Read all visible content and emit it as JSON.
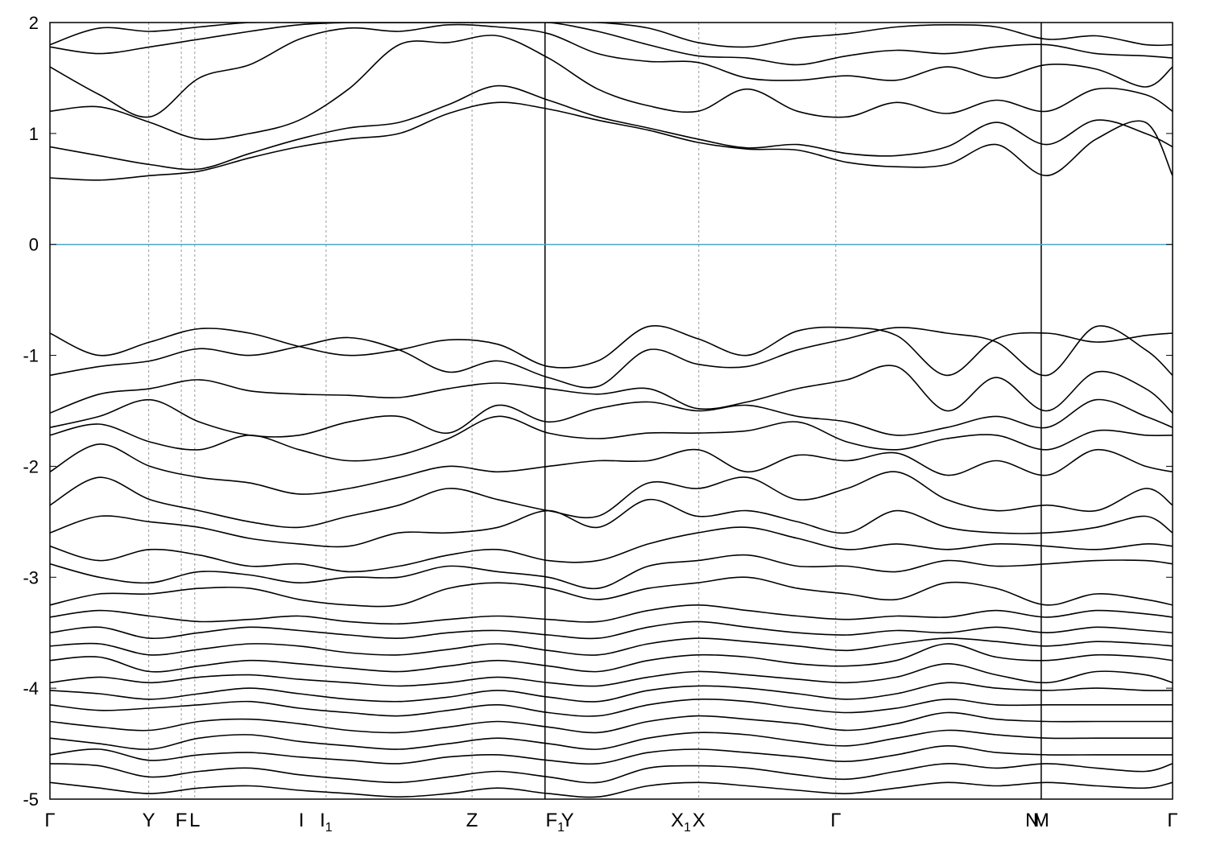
{
  "chart_data": {
    "type": "line",
    "title": "",
    "xlabel": "",
    "ylabel": "",
    "ylim": [
      -5,
      2
    ],
    "yticks": [
      2,
      1,
      0,
      -1,
      -2,
      -3,
      -4,
      -5
    ],
    "ytick_labels": [
      "2",
      "1",
      "0",
      "-1",
      "-2",
      "-3",
      "-4",
      "-5"
    ],
    "grid": false,
    "fermi_level": 0,
    "fermi_color": "#4aa8c8",
    "band_color": "#000000",
    "x": [
      0,
      0.044,
      0.089,
      0.133,
      0.178,
      0.222,
      0.266,
      0.311,
      0.355,
      0.399,
      0.444,
      0.488,
      0.533,
      0.577,
      0.621,
      0.666,
      0.71,
      0.754,
      0.799,
      0.843,
      0.888,
      0.932,
      0.976,
      1.0
    ],
    "high_symmetry_points": [
      {
        "label": "Γ",
        "sub": "",
        "x": 0.0
      },
      {
        "label": "Y",
        "sub": "",
        "x": 0.088
      },
      {
        "label": "F",
        "sub": "",
        "x": 0.117
      },
      {
        "label": "L",
        "sub": "",
        "x": 0.129
      },
      {
        "label": "I",
        "sub": "",
        "x": 0.224
      },
      {
        "label": "I",
        "sub": "1",
        "x": 0.246
      },
      {
        "label": "Z",
        "sub": "",
        "x": 0.376
      },
      {
        "label": "F",
        "sub": "1",
        "x": 0.45
      },
      {
        "label": "Y",
        "sub": "",
        "x": 0.461
      },
      {
        "label": "X",
        "sub": "1",
        "x": 0.562
      },
      {
        "label": "X",
        "sub": "",
        "x": 0.578
      },
      {
        "label": "Γ",
        "sub": "",
        "x": 0.7
      },
      {
        "label": "N",
        "sub": "",
        "x": 0.875
      },
      {
        "label": "M",
        "sub": "",
        "x": 0.883
      },
      {
        "label": "Γ",
        "sub": "",
        "x": 1.0
      }
    ],
    "vertical_lines": [
      0.088,
      0.117,
      0.129,
      0.246,
      0.376,
      0.578,
      0.7
    ],
    "path_breaks": [
      0.441,
      0.883
    ],
    "series": [
      {
        "values": [
          0.6,
          0.58,
          0.62,
          0.66,
          0.78,
          0.88,
          0.95,
          1.0,
          1.18,
          1.28,
          1.22,
          1.12,
          1.03,
          0.92,
          0.86,
          0.85,
          0.74,
          0.7,
          0.72,
          0.9,
          0.62,
          0.95,
          1.1,
          0.62
        ]
      },
      {
        "values": [
          0.88,
          0.8,
          0.72,
          0.68,
          0.82,
          0.95,
          1.05,
          1.1,
          1.26,
          1.43,
          1.3,
          1.15,
          1.05,
          0.95,
          0.87,
          0.9,
          0.82,
          0.8,
          0.88,
          1.1,
          0.9,
          1.12,
          1.0,
          0.88
        ]
      },
      {
        "values": [
          1.2,
          1.24,
          1.1,
          0.95,
          1.0,
          1.12,
          1.4,
          1.8,
          1.82,
          1.88,
          1.68,
          1.4,
          1.25,
          1.2,
          1.4,
          1.2,
          1.15,
          1.28,
          1.18,
          1.3,
          1.2,
          1.4,
          1.35,
          1.2
        ]
      },
      {
        "values": [
          1.6,
          1.35,
          1.15,
          1.5,
          1.62,
          1.85,
          1.95,
          1.92,
          1.98,
          1.96,
          1.9,
          1.72,
          1.65,
          1.64,
          1.5,
          1.48,
          1.52,
          1.48,
          1.6,
          1.5,
          1.62,
          1.58,
          1.42,
          1.6
        ]
      },
      {
        "values": [
          1.78,
          1.72,
          1.78,
          1.85,
          1.92,
          1.98,
          2.0,
          2.0,
          2.0,
          2.0,
          2.0,
          1.92,
          1.8,
          1.7,
          1.68,
          1.62,
          1.7,
          1.75,
          1.72,
          1.78,
          1.8,
          1.72,
          1.7,
          1.68
        ]
      },
      {
        "values": [
          1.8,
          1.95,
          1.92,
          1.96,
          2.0,
          2.0,
          2.0,
          2.0,
          2.0,
          2.0,
          2.0,
          2.0,
          1.95,
          1.82,
          1.78,
          1.86,
          1.9,
          1.96,
          1.98,
          1.96,
          1.85,
          1.88,
          1.8,
          1.8
        ]
      },
      {
        "values": [
          -0.8,
          -1.0,
          -0.88,
          -0.76,
          -0.8,
          -0.92,
          -1.0,
          -0.95,
          -0.86,
          -0.9,
          -1.1,
          -1.05,
          -0.74,
          -0.85,
          -1.0,
          -0.78,
          -0.75,
          -0.82,
          -1.18,
          -0.85,
          -0.8,
          -0.88,
          -0.82,
          -0.8
        ]
      },
      {
        "values": [
          -1.18,
          -1.1,
          -1.05,
          -0.94,
          -1.0,
          -0.92,
          -0.84,
          -0.95,
          -1.15,
          -1.05,
          -1.2,
          -1.28,
          -0.95,
          -1.08,
          -1.1,
          -0.95,
          -0.85,
          -0.75,
          -0.8,
          -0.88,
          -1.18,
          -0.74,
          -0.95,
          -1.18
        ]
      },
      {
        "values": [
          -1.52,
          -1.35,
          -1.3,
          -1.22,
          -1.32,
          -1.35,
          -1.36,
          -1.38,
          -1.3,
          -1.25,
          -1.3,
          -1.35,
          -1.3,
          -1.48,
          -1.42,
          -1.3,
          -1.22,
          -1.1,
          -1.5,
          -1.2,
          -1.5,
          -1.15,
          -1.3,
          -1.52
        ]
      },
      {
        "values": [
          -1.65,
          -1.55,
          -1.4,
          -1.6,
          -1.72,
          -1.72,
          -1.6,
          -1.55,
          -1.7,
          -1.45,
          -1.6,
          -1.48,
          -1.42,
          -1.5,
          -1.45,
          -1.55,
          -1.6,
          -1.72,
          -1.65,
          -1.55,
          -1.65,
          -1.4,
          -1.55,
          -1.65
        ]
      },
      {
        "values": [
          -1.72,
          -1.62,
          -1.78,
          -1.85,
          -1.72,
          -1.85,
          -1.95,
          -1.9,
          -1.75,
          -1.55,
          -1.7,
          -1.75,
          -1.7,
          -1.7,
          -1.68,
          -1.6,
          -1.78,
          -1.85,
          -1.75,
          -1.72,
          -1.85,
          -1.68,
          -1.72,
          -1.72
        ]
      },
      {
        "values": [
          -2.05,
          -1.8,
          -2.0,
          -2.1,
          -2.15,
          -2.25,
          -2.2,
          -2.1,
          -2.0,
          -2.05,
          -2.0,
          -1.95,
          -1.95,
          -1.85,
          -2.05,
          -1.9,
          -1.95,
          -1.88,
          -2.08,
          -1.95,
          -2.08,
          -1.85,
          -2.0,
          -2.05
        ]
      },
      {
        "values": [
          -2.35,
          -2.1,
          -2.3,
          -2.4,
          -2.5,
          -2.55,
          -2.45,
          -2.35,
          -2.2,
          -2.3,
          -2.4,
          -2.45,
          -2.15,
          -2.2,
          -2.1,
          -2.3,
          -2.2,
          -2.05,
          -2.3,
          -2.4,
          -2.35,
          -2.4,
          -2.2,
          -2.35
        ]
      },
      {
        "values": [
          -2.6,
          -2.45,
          -2.5,
          -2.55,
          -2.65,
          -2.7,
          -2.72,
          -2.6,
          -2.6,
          -2.55,
          -2.4,
          -2.55,
          -2.3,
          -2.45,
          -2.4,
          -2.5,
          -2.6,
          -2.4,
          -2.55,
          -2.6,
          -2.6,
          -2.55,
          -2.45,
          -2.6
        ]
      },
      {
        "values": [
          -2.72,
          -2.85,
          -2.75,
          -2.8,
          -2.9,
          -2.88,
          -2.95,
          -2.9,
          -2.8,
          -2.75,
          -2.85,
          -2.85,
          -2.7,
          -2.6,
          -2.55,
          -2.65,
          -2.75,
          -2.7,
          -2.75,
          -2.7,
          -2.72,
          -2.75,
          -2.7,
          -2.72
        ]
      },
      {
        "values": [
          -2.88,
          -3.0,
          -3.05,
          -2.95,
          -2.98,
          -3.05,
          -3.0,
          -3.0,
          -2.9,
          -2.95,
          -3.0,
          -3.1,
          -2.9,
          -2.85,
          -2.8,
          -2.9,
          -2.9,
          -2.95,
          -2.85,
          -2.9,
          -2.88,
          -2.85,
          -2.85,
          -2.88
        ]
      },
      {
        "values": [
          -3.25,
          -3.15,
          -3.15,
          -3.1,
          -3.1,
          -3.2,
          -3.25,
          -3.25,
          -3.1,
          -3.05,
          -3.1,
          -3.2,
          -3.1,
          -3.05,
          -3.0,
          -3.1,
          -3.15,
          -3.2,
          -3.05,
          -3.1,
          -3.25,
          -3.15,
          -3.2,
          -3.25
        ]
      },
      {
        "values": [
          -3.36,
          -3.3,
          -3.35,
          -3.4,
          -3.38,
          -3.35,
          -3.4,
          -3.42,
          -3.38,
          -3.35,
          -3.38,
          -3.4,
          -3.3,
          -3.25,
          -3.3,
          -3.35,
          -3.38,
          -3.35,
          -3.36,
          -3.3,
          -3.36,
          -3.3,
          -3.33,
          -3.36
        ]
      },
      {
        "values": [
          -3.5,
          -3.45,
          -3.55,
          -3.5,
          -3.45,
          -3.48,
          -3.52,
          -3.55,
          -3.5,
          -3.48,
          -3.52,
          -3.55,
          -3.45,
          -3.4,
          -3.45,
          -3.5,
          -3.52,
          -3.48,
          -3.5,
          -3.45,
          -3.5,
          -3.45,
          -3.48,
          -3.5
        ]
      },
      {
        "values": [
          -3.62,
          -3.6,
          -3.7,
          -3.65,
          -3.6,
          -3.62,
          -3.68,
          -3.7,
          -3.65,
          -3.6,
          -3.66,
          -3.7,
          -3.6,
          -3.55,
          -3.58,
          -3.62,
          -3.66,
          -3.6,
          -3.55,
          -3.58,
          -3.62,
          -3.58,
          -3.6,
          -3.62
        ]
      },
      {
        "values": [
          -3.75,
          -3.72,
          -3.85,
          -3.8,
          -3.75,
          -3.78,
          -3.82,
          -3.85,
          -3.8,
          -3.75,
          -3.8,
          -3.85,
          -3.75,
          -3.7,
          -3.72,
          -3.78,
          -3.8,
          -3.75,
          -3.6,
          -3.72,
          -3.75,
          -3.7,
          -3.72,
          -3.75
        ]
      },
      {
        "values": [
          -3.95,
          -3.9,
          -3.95,
          -3.9,
          -3.88,
          -3.92,
          -3.95,
          -3.98,
          -3.95,
          -3.9,
          -3.95,
          -3.98,
          -3.9,
          -3.85,
          -3.88,
          -3.92,
          -3.95,
          -3.9,
          -3.78,
          -3.88,
          -3.95,
          -3.85,
          -3.88,
          -3.95
        ]
      },
      {
        "values": [
          -4.02,
          -4.05,
          -4.1,
          -4.05,
          -4.0,
          -4.05,
          -4.1,
          -4.12,
          -4.08,
          -4.02,
          -4.08,
          -4.12,
          -4.02,
          -3.98,
          -4.0,
          -4.05,
          -4.1,
          -4.05,
          -3.95,
          -4.0,
          -4.02,
          -4.0,
          -4.02,
          -4.02
        ]
      },
      {
        "values": [
          -4.15,
          -4.2,
          -4.18,
          -4.15,
          -4.12,
          -4.18,
          -4.22,
          -4.25,
          -4.2,
          -4.15,
          -4.22,
          -4.25,
          -4.15,
          -4.1,
          -4.12,
          -4.18,
          -4.22,
          -4.18,
          -4.1,
          -4.15,
          -4.15,
          -4.15,
          -4.15,
          -4.15
        ]
      },
      {
        "values": [
          -4.3,
          -4.35,
          -4.38,
          -4.3,
          -4.28,
          -4.32,
          -4.38,
          -4.4,
          -4.35,
          -4.3,
          -4.35,
          -4.4,
          -4.3,
          -4.25,
          -4.28,
          -4.32,
          -4.38,
          -4.32,
          -4.22,
          -4.28,
          -4.3,
          -4.3,
          -4.3,
          -4.3
        ]
      },
      {
        "values": [
          -4.45,
          -4.5,
          -4.55,
          -4.45,
          -4.42,
          -4.48,
          -4.52,
          -4.55,
          -4.5,
          -4.45,
          -4.5,
          -4.55,
          -4.45,
          -4.4,
          -4.42,
          -4.48,
          -4.52,
          -4.45,
          -4.38,
          -4.42,
          -4.45,
          -4.45,
          -4.45,
          -4.45
        ]
      },
      {
        "values": [
          -4.6,
          -4.55,
          -4.65,
          -4.6,
          -4.58,
          -4.62,
          -4.65,
          -4.68,
          -4.62,
          -4.6,
          -4.65,
          -4.68,
          -4.58,
          -4.55,
          -4.58,
          -4.62,
          -4.66,
          -4.6,
          -4.52,
          -4.58,
          -4.6,
          -4.6,
          -4.6,
          -4.6
        ]
      },
      {
        "values": [
          -4.68,
          -4.7,
          -4.8,
          -4.75,
          -4.72,
          -4.78,
          -4.82,
          -4.85,
          -4.8,
          -4.75,
          -4.8,
          -4.85,
          -4.72,
          -4.7,
          -4.72,
          -4.78,
          -4.82,
          -4.75,
          -4.68,
          -4.72,
          -4.68,
          -4.72,
          -4.75,
          -4.68
        ]
      },
      {
        "values": [
          -4.85,
          -4.9,
          -4.95,
          -4.9,
          -4.88,
          -4.92,
          -4.95,
          -4.98,
          -4.95,
          -4.9,
          -4.95,
          -4.98,
          -4.88,
          -4.85,
          -4.88,
          -4.92,
          -4.95,
          -4.9,
          -4.85,
          -4.88,
          -4.85,
          -4.88,
          -4.9,
          -4.85
        ]
      }
    ]
  }
}
